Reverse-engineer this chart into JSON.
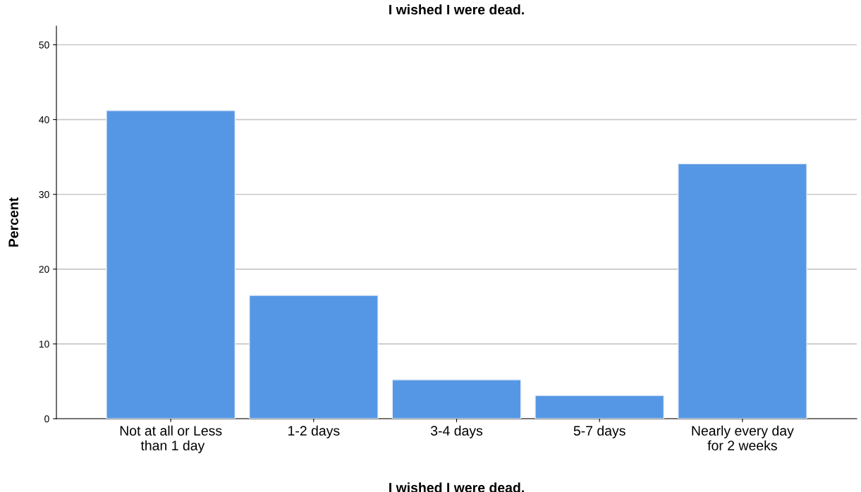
{
  "chart_data": {
    "type": "bar",
    "title": "I wished I were dead.",
    "xlabel": "I wished I were dead.",
    "ylabel": "Percent",
    "categories": [
      "Not at all or Less than 1 day",
      "1-2 days",
      "3-4 days",
      "5-7 days",
      "Nearly every day for 2 weeks"
    ],
    "values": [
      41.2,
      16.5,
      5.2,
      3.1,
      34.1
    ],
    "color": "#5597e4",
    "ylim": [
      0,
      52.5
    ],
    "yticks": [
      0,
      10,
      20,
      30,
      40,
      50
    ],
    "grid": "y"
  }
}
